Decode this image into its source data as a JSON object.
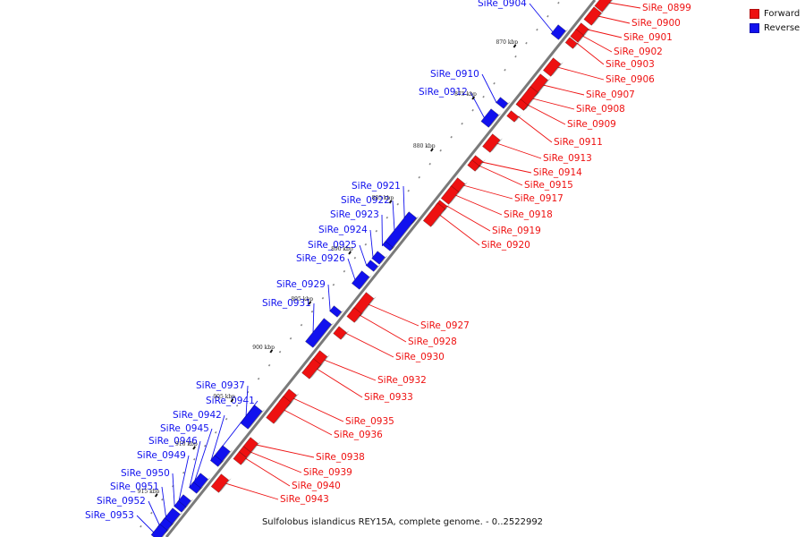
{
  "legend": {
    "forward_label": "Forward",
    "reverse_label": "Reverse",
    "forward_color": "#ee1111",
    "reverse_color": "#1111ee"
  },
  "caption": "Sulfolobus islandicus REY15A, complete genome. - 0..2522992",
  "ruler_labels": [
    "870 kbp",
    "875 kbp",
    "880 kbp",
    "885 kbp",
    "890 kbp",
    "895 kbp",
    "900 kbp",
    "905 kbp",
    "910 kbp",
    "915 kbp"
  ],
  "genes": [
    {
      "name": "SiRe_0899",
      "strand": "forward"
    },
    {
      "name": "SiRe_0900",
      "strand": "forward"
    },
    {
      "name": "SiRe_0901",
      "strand": "forward"
    },
    {
      "name": "SiRe_0902",
      "strand": "forward"
    },
    {
      "name": "SiRe_0903",
      "strand": "forward"
    },
    {
      "name": "SiRe_0904",
      "strand": "reverse"
    },
    {
      "name": "SiRe_0906",
      "strand": "forward"
    },
    {
      "name": "SiRe_0907",
      "strand": "forward"
    },
    {
      "name": "SiRe_0908",
      "strand": "forward"
    },
    {
      "name": "SiRe_0909",
      "strand": "forward"
    },
    {
      "name": "SiRe_0910",
      "strand": "reverse"
    },
    {
      "name": "SiRe_0911",
      "strand": "forward"
    },
    {
      "name": "SiRe_0912",
      "strand": "reverse"
    },
    {
      "name": "SiRe_0913",
      "strand": "forward"
    },
    {
      "name": "SiRe_0914",
      "strand": "forward"
    },
    {
      "name": "SiRe_0915",
      "strand": "forward"
    },
    {
      "name": "SiRe_0917",
      "strand": "forward"
    },
    {
      "name": "SiRe_0918",
      "strand": "forward"
    },
    {
      "name": "SiRe_0919",
      "strand": "forward"
    },
    {
      "name": "SiRe_0920",
      "strand": "forward"
    },
    {
      "name": "SiRe_0921",
      "strand": "reverse"
    },
    {
      "name": "SiRe_0922",
      "strand": "reverse"
    },
    {
      "name": "SiRe_0923",
      "strand": "reverse"
    },
    {
      "name": "SiRe_0924",
      "strand": "reverse"
    },
    {
      "name": "SiRe_0925",
      "strand": "reverse"
    },
    {
      "name": "SiRe_0926",
      "strand": "reverse"
    },
    {
      "name": "SiRe_0927",
      "strand": "forward"
    },
    {
      "name": "SiRe_0928",
      "strand": "forward"
    },
    {
      "name": "SiRe_0929",
      "strand": "reverse"
    },
    {
      "name": "SiRe_0930",
      "strand": "forward"
    },
    {
      "name": "SiRe_0931",
      "strand": "reverse"
    },
    {
      "name": "SiRe_0932",
      "strand": "forward"
    },
    {
      "name": "SiRe_0933",
      "strand": "forward"
    },
    {
      "name": "SiRe_0935",
      "strand": "forward"
    },
    {
      "name": "SiRe_0936",
      "strand": "forward"
    },
    {
      "name": "SiRe_0937",
      "strand": "reverse"
    },
    {
      "name": "SiRe_0938",
      "strand": "forward"
    },
    {
      "name": "SiRe_0939",
      "strand": "forward"
    },
    {
      "name": "SiRe_0940",
      "strand": "forward"
    },
    {
      "name": "SiRe_0941",
      "strand": "reverse"
    },
    {
      "name": "SiRe_0942",
      "strand": "reverse"
    },
    {
      "name": "SiRe_0943",
      "strand": "forward"
    },
    {
      "name": "SiRe_0945",
      "strand": "reverse"
    },
    {
      "name": "SiRe_0946",
      "strand": "reverse"
    },
    {
      "name": "SiRe_0949",
      "strand": "reverse"
    },
    {
      "name": "SiRe_0950",
      "strand": "reverse"
    },
    {
      "name": "SiRe_0951",
      "strand": "reverse"
    },
    {
      "name": "SiRe_0952",
      "strand": "reverse"
    },
    {
      "name": "SiRe_0953",
      "strand": "reverse"
    }
  ]
}
